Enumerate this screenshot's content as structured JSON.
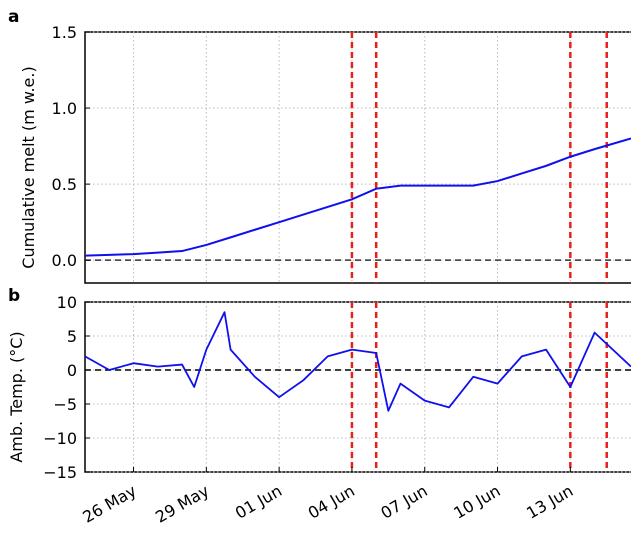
{
  "chart_data": [
    {
      "type": "line",
      "panel_label": "a",
      "ylabel": "Cumulative melt (m w.e.)",
      "ylim": [
        -0.15,
        1.5
      ],
      "yticks": [
        0.0,
        0.5,
        1.0,
        1.5
      ],
      "ytick_labels": [
        "0.0",
        "0.5",
        "1.0",
        "1.5"
      ],
      "xlim": [
        "2015-05-24",
        "2015-06-15T12:00"
      ],
      "grid": true,
      "series_color": "#1010ee",
      "reference_line": {
        "y": 0.0,
        "style": "dashed",
        "color": "#333333"
      },
      "event_lines": [
        "2015-06-04T00:00",
        "2015-06-05T00:00",
        "2015-06-13T00:00",
        "2015-06-14T12:00"
      ],
      "event_line_color": "#e8201a",
      "series": [
        {
          "x": [
            "2015-05-24",
            "2015-05-25",
            "2015-05-26",
            "2015-05-27",
            "2015-05-28",
            "2015-05-29",
            "2015-05-30",
            "2015-05-31",
            "2015-06-01",
            "2015-06-02",
            "2015-06-03",
            "2015-06-04",
            "2015-06-05",
            "2015-06-06",
            "2015-06-07",
            "2015-06-08",
            "2015-06-09",
            "2015-06-10",
            "2015-06-11",
            "2015-06-12",
            "2015-06-13",
            "2015-06-14",
            "2015-06-15T12:00"
          ],
          "values": [
            0.03,
            0.035,
            0.04,
            0.05,
            0.06,
            0.1,
            0.15,
            0.2,
            0.25,
            0.3,
            0.35,
            0.4,
            0.47,
            0.49,
            0.49,
            0.49,
            0.49,
            0.52,
            0.57,
            0.62,
            0.68,
            0.73,
            0.8
          ]
        }
      ]
    },
    {
      "type": "line",
      "panel_label": "b",
      "ylabel": "Amb. Temp. (°C)",
      "ylim": [
        -15,
        10
      ],
      "yticks": [
        -15,
        -10,
        -5,
        0,
        5,
        10
      ],
      "ytick_labels": [
        "−15",
        "−10",
        "−5",
        "0",
        "5",
        "10"
      ],
      "grid": true,
      "series_color": "#1010ee",
      "reference_line": {
        "y": 0,
        "style": "dashed",
        "color": "#000000"
      },
      "event_lines": [
        "2015-06-04T00:00",
        "2015-06-05T00:00",
        "2015-06-13T00:00",
        "2015-06-14T12:00"
      ],
      "event_line_color": "#e8201a",
      "x_tick_labels": [
        "26 May",
        "29 May",
        "01 Jun",
        "04 Jun",
        "07 Jun",
        "10 Jun",
        "13 Jun"
      ],
      "x_ticks": [
        "2015-05-26",
        "2015-05-29",
        "2015-06-01",
        "2015-06-04",
        "2015-06-07",
        "2015-06-10",
        "2015-06-13"
      ],
      "series": [
        {
          "x": [
            "2015-05-24",
            "2015-05-25",
            "2015-05-26",
            "2015-05-27",
            "2015-05-28",
            "2015-05-28T12:00",
            "2015-05-29",
            "2015-05-29T18:00",
            "2015-05-30",
            "2015-05-31",
            "2015-06-01",
            "2015-06-02",
            "2015-06-03",
            "2015-06-04",
            "2015-06-05",
            "2015-06-05T12:00",
            "2015-06-06",
            "2015-06-07",
            "2015-06-08",
            "2015-06-09",
            "2015-06-10",
            "2015-06-11",
            "2015-06-12",
            "2015-06-13",
            "2015-06-14",
            "2015-06-15T12:00"
          ],
          "values": [
            2.0,
            0.0,
            1.0,
            0.5,
            0.8,
            -2.5,
            3.0,
            8.5,
            3.0,
            -1.0,
            -4.0,
            -1.5,
            2.0,
            3.0,
            2.5,
            -6.0,
            -2.0,
            -4.5,
            -5.5,
            -1.0,
            -2.0,
            2.0,
            3.0,
            -2.5,
            5.5,
            0.5
          ]
        }
      ]
    }
  ]
}
